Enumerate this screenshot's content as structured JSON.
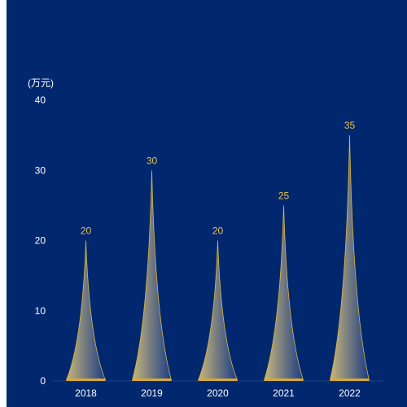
{
  "chart_data": {
    "type": "bar",
    "bar_style": "pictorial-triangle",
    "unit": "(万元)",
    "categories": [
      "2018",
      "2019",
      "2020",
      "2021",
      "2022"
    ],
    "values": [
      20,
      30,
      20,
      25,
      35
    ],
    "ylim": [
      0,
      40
    ],
    "yticks": [
      0,
      10,
      20,
      30,
      40
    ],
    "grid": false,
    "legend": "none",
    "colors": {
      "background": "#01286e",
      "bar_light": "#c9b77a",
      "bar_dark": "#1a3b86",
      "bar_stroke": "#d9b64a",
      "base": "#d9a93a",
      "data_label": "#e8c24a",
      "axis_text": "#ffffff"
    }
  }
}
